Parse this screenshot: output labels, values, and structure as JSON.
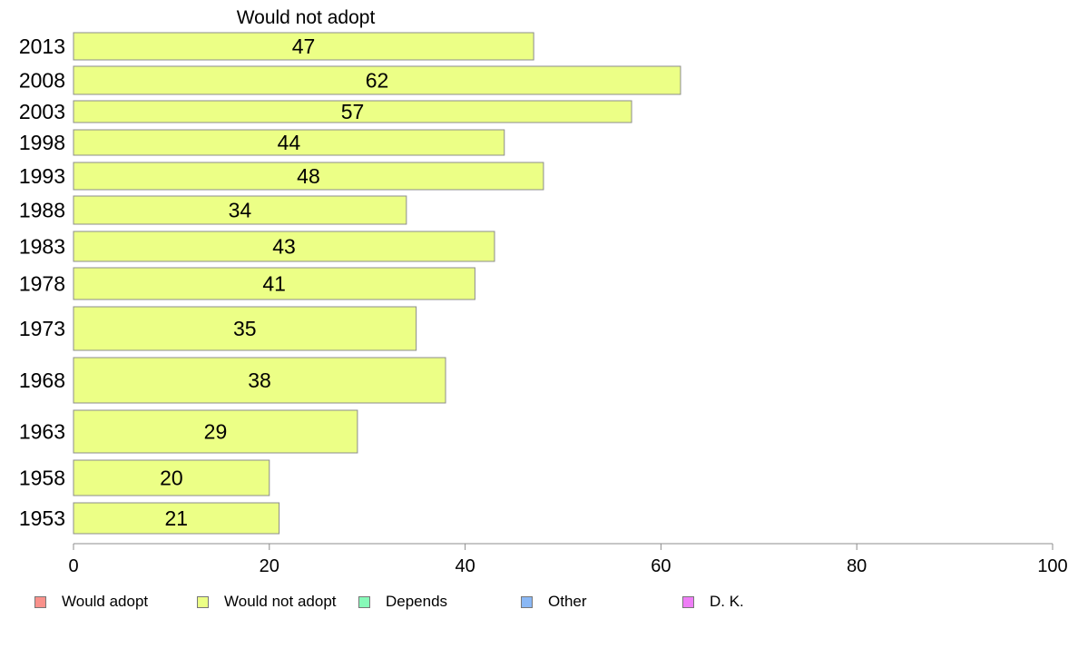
{
  "chart_data": {
    "type": "bar",
    "orientation": "horizontal",
    "title": "Would not adopt",
    "categories": [
      "2013",
      "2008",
      "2003",
      "1998",
      "1993",
      "1988",
      "1983",
      "1978",
      "1973",
      "1968",
      "1963",
      "1958",
      "1953"
    ],
    "series": [
      {
        "name": "Would not adopt",
        "values": [
          47,
          62,
          57,
          44,
          48,
          34,
          43,
          41,
          35,
          38,
          29,
          20,
          21
        ]
      }
    ],
    "xlim": [
      0,
      100
    ],
    "x_ticks": [
      "0",
      "20",
      "40",
      "60",
      "80",
      "100"
    ],
    "grid": false,
    "legend_position": "bottom",
    "bar_color": "#ecff86"
  },
  "legend": [
    {
      "label": "Would adopt",
      "color": "#f9918b"
    },
    {
      "label": "Would not adopt",
      "color": "#ecff86"
    },
    {
      "label": "Depends",
      "color": "#86f9b8"
    },
    {
      "label": "Other",
      "color": "#8ab8f5"
    },
    {
      "label": "D. K.",
      "color": "#ee7ef6"
    }
  ]
}
